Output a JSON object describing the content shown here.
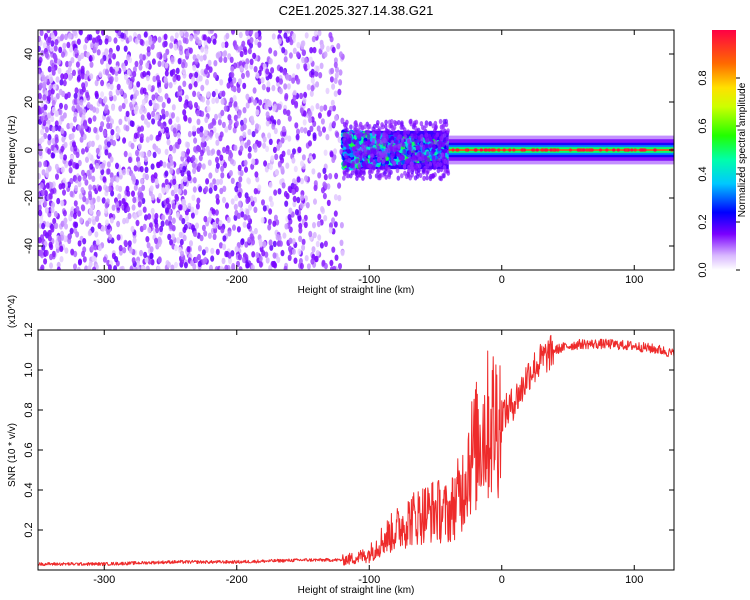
{
  "title": "C2E1.2025.327.14.38.G21",
  "chart_data": [
    {
      "type": "heatmap",
      "xlabel": "Height of straight line (km)",
      "ylabel": "Frequency (Hz)",
      "xlim": [
        -350,
        130
      ],
      "ylim": [
        -50,
        50
      ],
      "xticks": [
        "-300",
        "-200",
        "-100",
        "0",
        "100"
      ],
      "yticks": [
        "-40",
        "-20",
        "0",
        "20",
        "40"
      ],
      "colorbar": {
        "label": "Normalized spectral amplitude",
        "range": [
          0,
          1
        ],
        "ticks": [
          "0.0",
          "0.2",
          "0.4",
          "0.6",
          "0.8"
        ]
      },
      "regions": [
        {
          "x_range": [
            -350,
            -120
          ],
          "freq_range": [
            -50,
            50
          ],
          "amplitude": 0.1,
          "pattern": "noise"
        },
        {
          "x_range": [
            -120,
            -40
          ],
          "freq_range": [
            -8,
            8
          ],
          "amplitude": 0.3,
          "pattern": "broadband"
        },
        {
          "x_range": [
            -40,
            130
          ],
          "freq_range": [
            -1,
            1
          ],
          "amplitude": 0.9,
          "pattern": "narrow carrier line at 0 Hz"
        }
      ],
      "grid": false
    },
    {
      "type": "line",
      "xlabel": "Height of straight line (km)",
      "ylabel": "SNR (10 * v/v)",
      "scale_note": "(x10^4)",
      "xlim": [
        -350,
        130
      ],
      "ylim": [
        0,
        1.2
      ],
      "xticks": [
        "-300",
        "-200",
        "-100",
        "0",
        "100"
      ],
      "yticks": [
        "0.2",
        "0.4",
        "0.6",
        "0.8",
        "1.0",
        "1.2"
      ],
      "series_color": "#ee2b2b",
      "x": [
        -350,
        -300,
        -250,
        -200,
        -150,
        -120,
        -110,
        -100,
        -90,
        -80,
        -70,
        -60,
        -50,
        -40,
        -30,
        -25,
        -20,
        -15,
        -10,
        -5,
        0,
        5,
        10,
        15,
        20,
        30,
        40,
        50,
        60,
        80,
        100,
        120,
        130
      ],
      "y": [
        0.03,
        0.03,
        0.04,
        0.04,
        0.05,
        0.05,
        0.06,
        0.08,
        0.15,
        0.2,
        0.25,
        0.28,
        0.3,
        0.28,
        0.4,
        0.55,
        0.6,
        0.7,
        0.72,
        0.75,
        0.78,
        0.8,
        0.85,
        0.9,
        0.98,
        1.05,
        1.1,
        1.12,
        1.13,
        1.13,
        1.12,
        1.1,
        1.08
      ],
      "grid": false
    }
  ]
}
